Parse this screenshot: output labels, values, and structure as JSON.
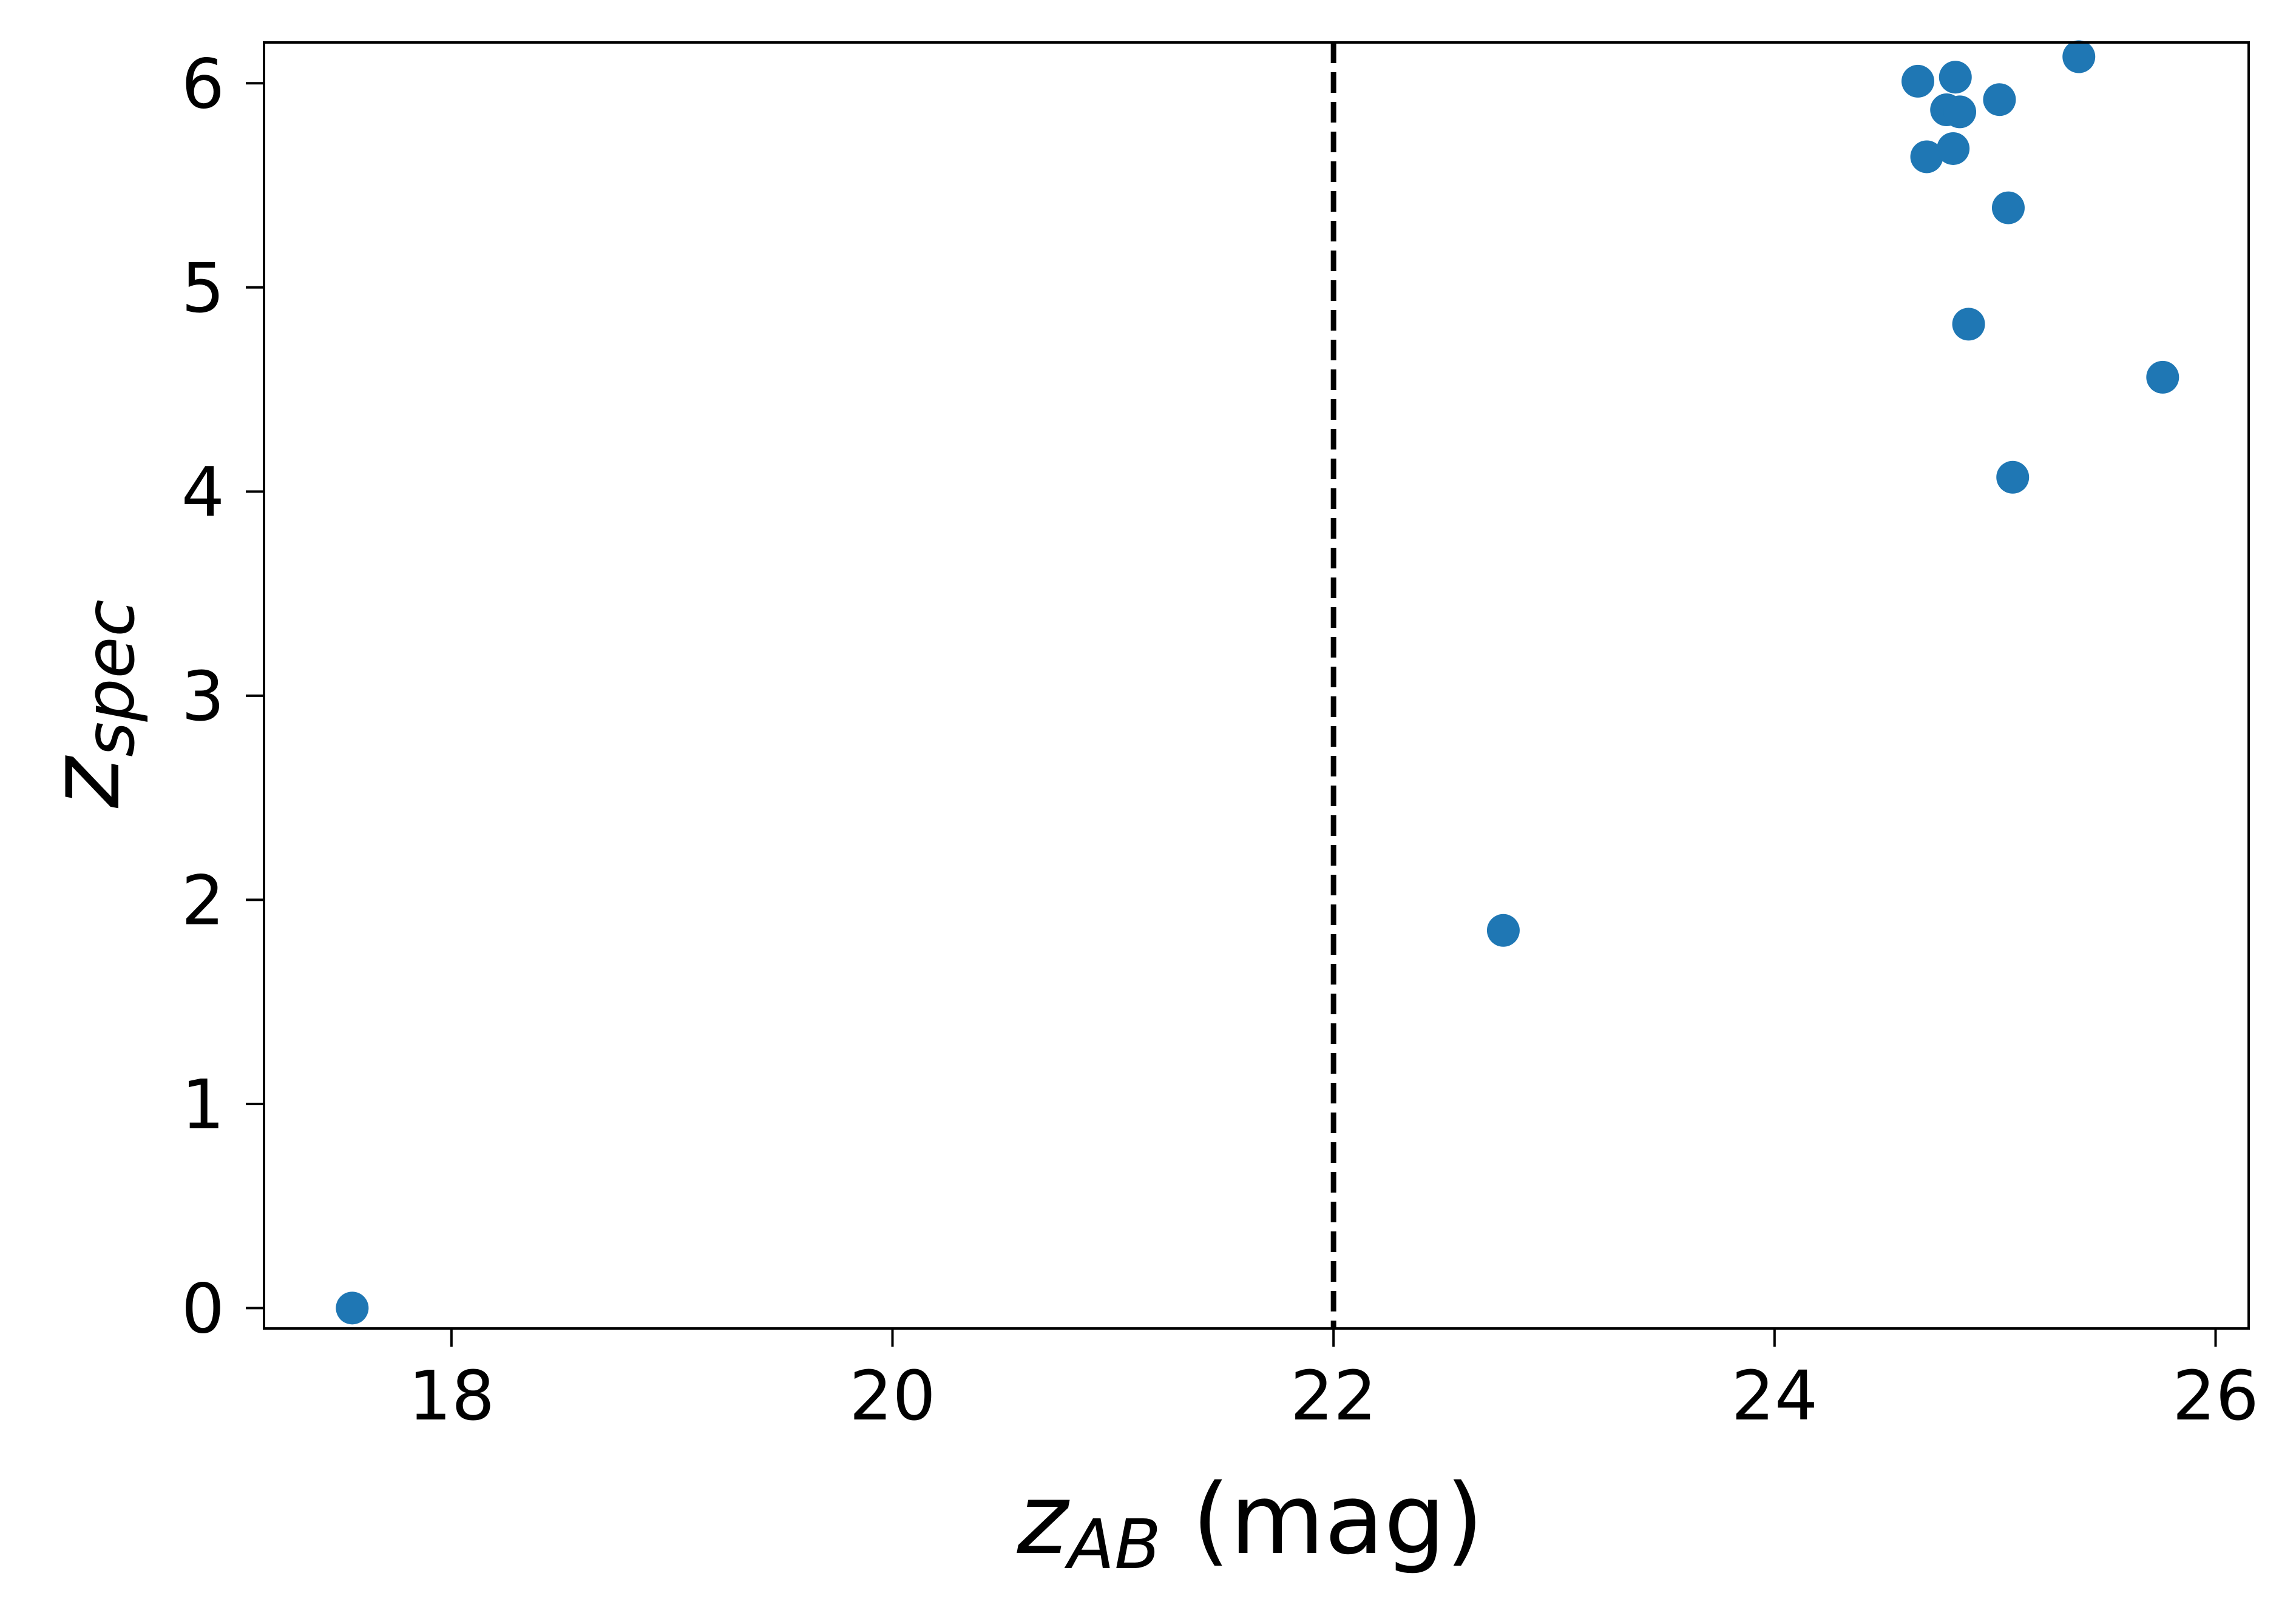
{
  "chart_data": {
    "type": "scatter",
    "title": "",
    "xlabel": {
      "main": "z",
      "sub": "AB",
      "suffix": " (mag)"
    },
    "ylabel": {
      "main": "z",
      "sub": "spec"
    },
    "xlim": [
      17.15,
      26.15
    ],
    "ylim": [
      -0.1,
      6.2
    ],
    "xticks": [
      18,
      20,
      22,
      24,
      26
    ],
    "yticks": [
      0,
      1,
      2,
      3,
      4,
      5,
      6
    ],
    "grid": false,
    "legend": "none",
    "reference_line": {
      "x": 22,
      "style": "dashed",
      "color": "#000000"
    },
    "series": [
      {
        "color": "#1f77b4",
        "points": [
          {
            "x": 17.55,
            "y": 0.0
          },
          {
            "x": 22.77,
            "y": 1.85
          },
          {
            "x": 24.65,
            "y": 6.01
          },
          {
            "x": 24.69,
            "y": 5.64
          },
          {
            "x": 24.78,
            "y": 5.87
          },
          {
            "x": 24.81,
            "y": 5.68
          },
          {
            "x": 24.82,
            "y": 6.03
          },
          {
            "x": 24.84,
            "y": 5.86
          },
          {
            "x": 24.88,
            "y": 4.82
          },
          {
            "x": 25.02,
            "y": 5.92
          },
          {
            "x": 25.06,
            "y": 5.39
          },
          {
            "x": 25.08,
            "y": 4.07
          },
          {
            "x": 25.38,
            "y": 6.13
          },
          {
            "x": 25.76,
            "y": 4.56
          }
        ]
      }
    ]
  }
}
